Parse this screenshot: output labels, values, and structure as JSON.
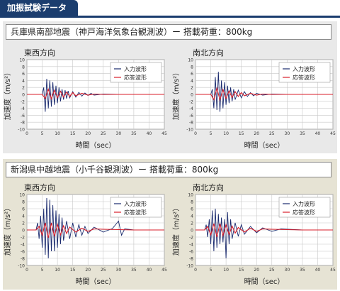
{
  "header": {
    "title": "加振試験データ"
  },
  "sections": [
    {
      "title": "兵庫県南部地震（神戸海洋気象台観測波）ー 搭載荷重：800kg"
    },
    {
      "title": "新潟県中越地震（小千谷観測波）ー 搭載荷重：800kg"
    }
  ],
  "colors": {
    "input": "#1a2a6e",
    "response": "#d81e2a",
    "bg_top": "#e9e9e9",
    "bg_bottom": "#e6e3d4",
    "header": "#1b3d6e"
  },
  "chart_data": [
    {
      "type": "line",
      "title": "東西方向",
      "xlabel": "時間（sec）",
      "ylabel": "加速度（m/s²）",
      "xlim": [
        0,
        45
      ],
      "ylim": [
        -10,
        10
      ],
      "xticks": [
        "0",
        "5",
        "10",
        "15",
        "20",
        "25",
        "30",
        "35",
        "40",
        "45"
      ],
      "yticks": [
        "10",
        "8",
        "6",
        "4",
        "2",
        "0",
        "-2",
        "-4",
        "-6",
        "-8",
        "-10"
      ],
      "legend_position": "top-right",
      "series": [
        {
          "name": "入力波形",
          "color": "#1a2a6e",
          "x": [
            0,
            5,
            5.5,
            6,
            6.5,
            7,
            7.5,
            8,
            8.5,
            9,
            9.5,
            10,
            10.5,
            11,
            11.5,
            12,
            12.5,
            13,
            13.5,
            14,
            15,
            16,
            17,
            18,
            19,
            20,
            21,
            22,
            25,
            30,
            35,
            40,
            45
          ],
          "y": [
            0,
            0,
            2,
            -5,
            4.5,
            -4,
            4,
            -3.5,
            3.5,
            -3,
            2.5,
            -2.5,
            2,
            -2,
            1.5,
            -1.5,
            1.2,
            -1.2,
            1,
            -1,
            0.8,
            -0.8,
            0.6,
            -0.5,
            0.4,
            -0.3,
            0.3,
            -0.2,
            0.1,
            0,
            0,
            0,
            0
          ]
        },
        {
          "name": "応答波形",
          "color": "#d81e2a",
          "x": [
            0,
            5,
            6,
            7,
            8,
            9,
            10,
            11,
            12,
            13,
            14,
            15,
            16,
            18,
            20,
            22,
            25,
            30,
            35,
            40,
            45
          ],
          "y": [
            0,
            0,
            -1.2,
            1.5,
            -1.3,
            1.2,
            -1,
            0.9,
            -0.8,
            0.7,
            -0.6,
            0.5,
            -0.4,
            0.3,
            -0.2,
            0.1,
            0,
            0,
            0,
            0,
            0
          ]
        }
      ]
    },
    {
      "type": "line",
      "title": "南北方向",
      "xlabel": "時間（sec）",
      "ylabel": "加速度（m/s²）",
      "xlim": [
        0,
        45
      ],
      "ylim": [
        -10,
        10
      ],
      "xticks": [
        "0",
        "5",
        "10",
        "15",
        "20",
        "25",
        "30",
        "35",
        "40",
        "45"
      ],
      "yticks": [
        "10",
        "8",
        "6",
        "4",
        "2",
        "0",
        "-2",
        "-4",
        "-6",
        "-8",
        "-10"
      ],
      "legend_position": "top-right",
      "series": [
        {
          "name": "入力波形",
          "color": "#1a2a6e",
          "x": [
            0,
            5,
            5.5,
            6,
            6.5,
            7,
            7.5,
            8,
            8.5,
            9,
            9.5,
            10,
            10.5,
            11,
            11.5,
            12,
            12.5,
            13,
            14,
            15,
            16,
            17,
            18,
            19,
            20,
            22,
            25,
            30,
            35,
            40,
            45
          ],
          "y": [
            0,
            0,
            1.5,
            -4,
            5,
            -4.5,
            6.5,
            -5,
            4,
            -4,
            3.5,
            -3,
            2.5,
            -2.5,
            2,
            -2,
            1.5,
            -1.5,
            1.2,
            -1,
            0.8,
            -0.6,
            0.5,
            -0.4,
            0.3,
            -0.2,
            0.1,
            0,
            0,
            0,
            0
          ]
        },
        {
          "name": "応答波形",
          "color": "#d81e2a",
          "x": [
            0,
            5,
            6,
            7,
            8,
            9,
            10,
            11,
            12,
            13,
            14,
            15,
            16,
            18,
            20,
            22,
            25,
            30,
            35,
            40,
            45
          ],
          "y": [
            0,
            0,
            -1.5,
            1.8,
            -1.6,
            1.4,
            -1.2,
            1,
            -0.9,
            0.8,
            -0.6,
            0.5,
            -0.4,
            0.3,
            -0.2,
            0.1,
            0,
            0,
            0,
            0,
            0
          ]
        }
      ]
    },
    {
      "type": "line",
      "title": "東西方向",
      "xlabel": "時間（sec）",
      "ylabel": "加速度（m/s²）",
      "xlim": [
        0,
        45
      ],
      "ylim": [
        -10,
        10
      ],
      "xticks": [
        "0",
        "5",
        "10",
        "15",
        "20",
        "25",
        "30",
        "35",
        "40",
        "45"
      ],
      "yticks": [
        "10",
        "8",
        "6",
        "4",
        "2",
        "0",
        "-2",
        "-4",
        "-6",
        "-8",
        "-10"
      ],
      "legend_position": "top-right",
      "series": [
        {
          "name": "入力波形",
          "color": "#1a2a6e",
          "x": [
            0,
            3,
            3.5,
            4,
            4.5,
            5,
            5.5,
            6,
            6.5,
            7,
            7.5,
            8,
            8.5,
            9,
            9.5,
            10,
            10.5,
            11,
            11.5,
            12,
            13,
            14,
            15,
            16,
            17,
            18,
            19,
            20,
            22,
            25,
            28,
            30,
            31,
            32,
            35,
            40,
            45
          ],
          "y": [
            0,
            0,
            2,
            -2.5,
            4,
            -5,
            6,
            -7,
            9,
            -8,
            8.5,
            -6,
            7,
            -6,
            5.5,
            -5,
            4.5,
            -4,
            3.5,
            -3,
            2.5,
            -2.5,
            2,
            -2,
            1.5,
            -1.5,
            1,
            -1,
            0.8,
            -0.6,
            0.4,
            2.5,
            -1.5,
            0.3,
            0,
            0,
            0
          ]
        },
        {
          "name": "応答波形",
          "color": "#d81e2a",
          "x": [
            0,
            3,
            4,
            5,
            6,
            7,
            8,
            9,
            10,
            11,
            12,
            13,
            14,
            16,
            18,
            20,
            22,
            25,
            30,
            35,
            40,
            45
          ],
          "y": [
            0,
            0,
            1,
            -1.5,
            2,
            -2.2,
            2,
            -1.8,
            1.6,
            -1.4,
            1.2,
            -1,
            0.8,
            -0.6,
            0.5,
            -0.4,
            0.3,
            0.2,
            0.1,
            0,
            0,
            0
          ]
        }
      ]
    },
    {
      "type": "line",
      "title": "南北方向",
      "xlabel": "時間（sec）",
      "ylabel": "加速度（m/s²）",
      "xlim": [
        0,
        45
      ],
      "ylim": [
        -10,
        10
      ],
      "xticks": [
        "0",
        "5",
        "10",
        "15",
        "20",
        "25",
        "30",
        "35",
        "40",
        "45"
      ],
      "yticks": [
        "10",
        "8",
        "6",
        "4",
        "2",
        "0",
        "-2",
        "-4",
        "-6",
        "-8",
        "-10"
      ],
      "legend_position": "top-right",
      "series": [
        {
          "name": "入力波形",
          "color": "#1a2a6e",
          "x": [
            0,
            3,
            3.5,
            4,
            4.5,
            5,
            5.5,
            6,
            6.5,
            7,
            7.5,
            8,
            8.5,
            9,
            9.5,
            10,
            10.5,
            11,
            11.5,
            12,
            13,
            14,
            15,
            16,
            18,
            20,
            22,
            25,
            28,
            30,
            35,
            40,
            45
          ],
          "y": [
            0,
            0,
            1.5,
            -2,
            3,
            -4,
            5.5,
            -6,
            6,
            -5,
            4.5,
            -4,
            3.5,
            -3.5,
            3,
            -8,
            5,
            -4,
            3,
            -2.5,
            2,
            -1.8,
            1.5,
            -1.2,
            1,
            -0.8,
            0.6,
            -0.4,
            0.3,
            0.2,
            0,
            0,
            0
          ]
        },
        {
          "name": "応答波形",
          "color": "#d81e2a",
          "x": [
            0,
            3,
            4,
            5,
            6,
            7,
            8,
            9,
            10,
            11,
            12,
            13,
            14,
            16,
            18,
            20,
            22,
            25,
            30,
            35,
            40,
            45
          ],
          "y": [
            0,
            0,
            1,
            -1.4,
            1.8,
            -2,
            1.8,
            -1.6,
            1.5,
            -1.3,
            1.1,
            -0.9,
            0.7,
            -0.6,
            0.5,
            -0.4,
            0.3,
            0.2,
            0.1,
            0,
            0,
            0
          ]
        }
      ]
    }
  ]
}
